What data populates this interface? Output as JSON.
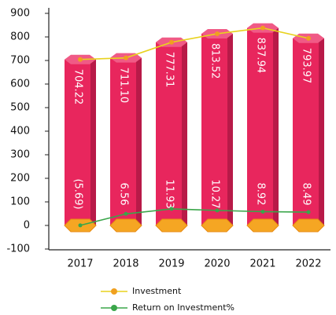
{
  "chart_data": {
    "type": "bar",
    "categories": [
      "2017",
      "2018",
      "2019",
      "2020",
      "2021",
      "2022"
    ],
    "series": [
      {
        "name": "Investment",
        "color": "#e8d21e",
        "bar_color": "#e8265d",
        "values": [
          704.22,
          711.1,
          777.31,
          813.52,
          837.94,
          793.97
        ],
        "value_labels": [
          "704.22",
          "711.10",
          "777.31",
          "813.52",
          "837.94",
          "793.97"
        ]
      },
      {
        "name": "Return on Investment%",
        "color": "#3aa64a",
        "axis": "y2",
        "values": [
          -5.69,
          6.56,
          11.93,
          10.27,
          8.92,
          8.49
        ],
        "value_labels": [
          "(5.69)",
          "6.56",
          "11.93",
          "10.27",
          "8.92",
          "8.49"
        ]
      }
    ],
    "ylim": [
      -100,
      900
    ],
    "yticks": [
      -100,
      0,
      100,
      200,
      300,
      400,
      500,
      600,
      700,
      800,
      900
    ],
    "y2lim": [
      -31,
      221
    ]
  }
}
